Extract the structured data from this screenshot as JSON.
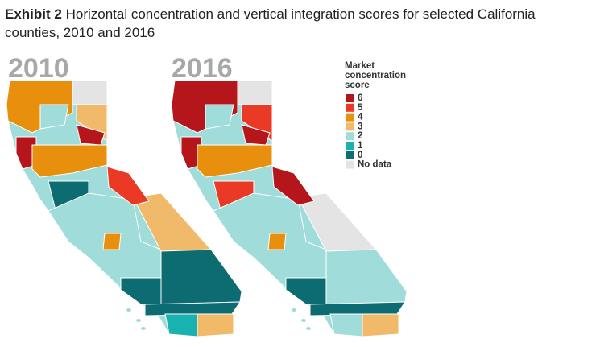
{
  "title_bold": "Exhibit 2",
  "title": "Horizontal concentration and vertical integration scores for selected California counties, 2010 and 2016",
  "maps": [
    {
      "label": "2010"
    },
    {
      "label": "2016"
    }
  ],
  "legend": {
    "title": "Market concentration score",
    "items": [
      {
        "label": "6",
        "color": "#b5161c"
      },
      {
        "label": "5",
        "color": "#ea3a26"
      },
      {
        "label": "4",
        "color": "#e8900e"
      },
      {
        "label": "3",
        "color": "#f0ba6a"
      },
      {
        "label": "2",
        "color": "#9fdcda"
      },
      {
        "label": "1",
        "color": "#19b2b0"
      },
      {
        "label": "0",
        "color": "#0c6c71"
      },
      {
        "label": "No data",
        "color": "#e4e4e4"
      }
    ]
  }
}
